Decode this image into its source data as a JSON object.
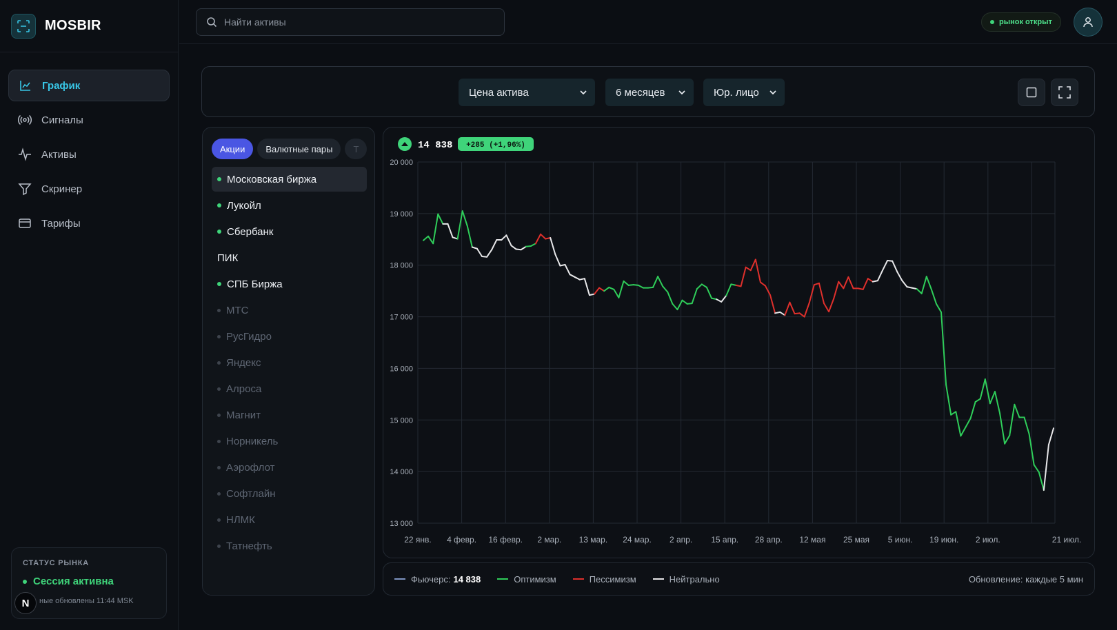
{
  "brand": {
    "name": "MOSBIR"
  },
  "nav": [
    {
      "label": "График",
      "active": true,
      "icon": "line-chart-icon"
    },
    {
      "label": "Сигналы",
      "active": false,
      "icon": "broadcast-icon"
    },
    {
      "label": "Активы",
      "active": false,
      "icon": "activity-icon"
    },
    {
      "label": "Скринер",
      "active": false,
      "icon": "filter-icon"
    },
    {
      "label": "Тарифы",
      "active": false,
      "icon": "card-icon"
    }
  ],
  "status": {
    "title": "СТАТУС РЫНКА",
    "session": "Сессия активна",
    "updated": "ные обновлены 11:44 MSK",
    "badge": "N"
  },
  "search": {
    "placeholder": "Найти активы"
  },
  "market_pill": "рынок открыт",
  "controls": {
    "metric": "Цена актива",
    "period": "6 месяцев",
    "entity": "Юр. лицо"
  },
  "tabs": [
    "Акции",
    "Валютные пары",
    "Т"
  ],
  "items": [
    {
      "label": "Московская биржа",
      "state": "active",
      "selected": true
    },
    {
      "label": "Лукойл",
      "state": "active"
    },
    {
      "label": "Сбербанк",
      "state": "active"
    },
    {
      "label": "ПИК",
      "state": "none"
    },
    {
      "label": "СПБ Биржа",
      "state": "active"
    },
    {
      "label": "МТС",
      "state": "dim"
    },
    {
      "label": "РусГидро",
      "state": "dim"
    },
    {
      "label": "Яндекс",
      "state": "dim"
    },
    {
      "label": "Алроса",
      "state": "dim"
    },
    {
      "label": "Магнит",
      "state": "dim"
    },
    {
      "label": "Норникель",
      "state": "dim"
    },
    {
      "label": "Аэрофлот",
      "state": "dim"
    },
    {
      "label": "Софтлайн",
      "state": "dim"
    },
    {
      "label": "НЛМК",
      "state": "dim"
    },
    {
      "label": "Татнефть",
      "state": "dim"
    }
  ],
  "price": {
    "value": "14 838",
    "change": "+285 (+1,96%)"
  },
  "legend": {
    "futures_label": "Фьючерс:",
    "futures_value": "14 838",
    "optimism": "Оптимизм",
    "pessimism": "Пессимизм",
    "neutral": "Нейтрально",
    "update": "Обновление: каждые 5 мин"
  },
  "colors": {
    "optimism": "#2fce5a",
    "pessimism": "#e0302c",
    "neutral": "#e8e8ea",
    "futures": "#7f95c2",
    "accent": "#38c6e6"
  },
  "chart_data": {
    "type": "line",
    "ylim": [
      13000,
      20000
    ],
    "yticks": [
      "20 000",
      "19 000",
      "18 000",
      "17 000",
      "16 000",
      "15 000",
      "14 000",
      "13 000"
    ],
    "xticks": [
      "22 янв.",
      "4 февр.",
      "16 февр.",
      "2 мар.",
      "13 мар.",
      "24 мар.",
      "2 апр.",
      "15 апр.",
      "28 апр.",
      "12 мая",
      "25 мая",
      "5 июн.",
      "19 июн.",
      "2 июл.",
      "21 июл."
    ],
    "grid": true,
    "series_values": [
      18480,
      18560,
      18420,
      18990,
      18800,
      18800,
      18540,
      18510,
      19050,
      18760,
      18350,
      18320,
      18170,
      18160,
      18300,
      18490,
      18490,
      18580,
      18380,
      18310,
      18300,
      18360,
      18370,
      18420,
      18600,
      18510,
      18530,
      18210,
      17990,
      18010,
      17820,
      17770,
      17720,
      17740,
      17420,
      17440,
      17560,
      17500,
      17570,
      17530,
      17370,
      17690,
      17610,
      17620,
      17610,
      17560,
      17560,
      17570,
      17780,
      17590,
      17480,
      17250,
      17140,
      17320,
      17250,
      17260,
      17540,
      17630,
      17570,
      17360,
      17340,
      17290,
      17410,
      17630,
      17610,
      17590,
      17960,
      17900,
      18110,
      17670,
      17600,
      17420,
      17070,
      17090,
      17030,
      17280,
      17060,
      17070,
      17000,
      17270,
      17620,
      17650,
      17260,
      17100,
      17350,
      17680,
      17550,
      17770,
      17550,
      17550,
      17530,
      17740,
      17680,
      17700,
      17900,
      18090,
      18080,
      17870,
      17700,
      17580,
      17560,
      17540,
      17450,
      17780,
      17530,
      17250,
      17090,
      15680,
      15100,
      15160,
      14690,
      14860,
      15030,
      15350,
      15410,
      15790,
      15320,
      15550,
      15130,
      14540,
      14700,
      15300,
      15050,
      15050,
      14730,
      14130,
      13990,
      13640,
      14520,
      14840
    ],
    "segment_colors": "OOOOWWWOOOWWWWWWWWWWWOORRRWWWWWWWWWRROOOOOOOOOOOOOOOOOOOOOOOWWOORRRRRRRRWWRRRRRRRRRRRRRRRRRRWWWWWWWWWOOOOOOOOOOOOOOOOOOOOOOOOOOWWWWWWW"
  }
}
